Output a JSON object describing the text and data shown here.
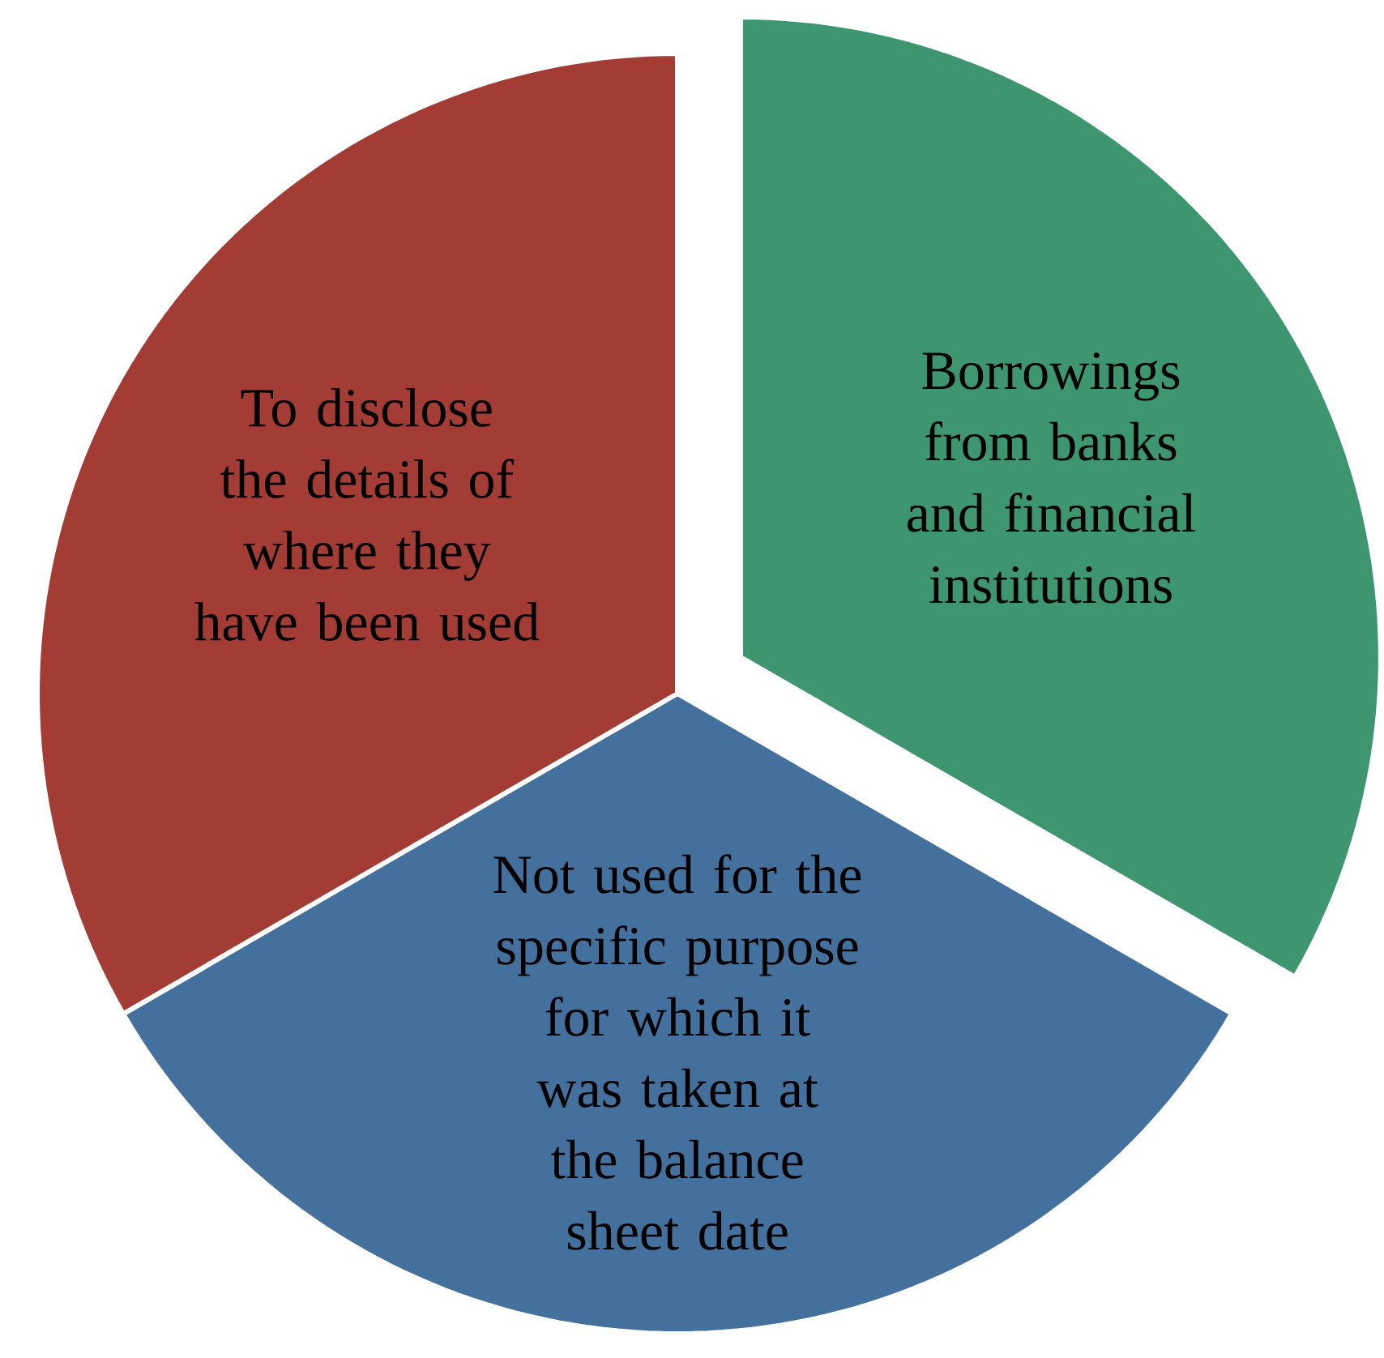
{
  "chart_data": {
    "type": "pie",
    "categories": [
      "Borrowings from banks and financial institutions",
      "Not used for the specific purpose for which it was taken at the balance sheet date",
      "To disclose the details of where they have been used"
    ],
    "values": [
      33.33,
      33.33,
      33.34
    ],
    "colors": [
      "#3e9670",
      "#44709e",
      "#a23c34"
    ]
  }
}
